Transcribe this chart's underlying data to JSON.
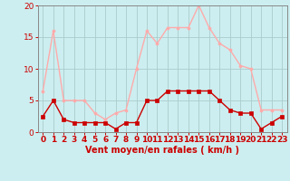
{
  "hours": [
    0,
    1,
    2,
    3,
    4,
    5,
    6,
    7,
    8,
    9,
    10,
    11,
    12,
    13,
    14,
    15,
    16,
    17,
    18,
    19,
    20,
    21,
    22,
    23
  ],
  "vent_moyen": [
    2.5,
    5,
    2,
    1.5,
    1.5,
    1.5,
    1.5,
    0.5,
    1.5,
    1.5,
    5,
    5,
    6.5,
    6.5,
    6.5,
    6.5,
    6.5,
    5,
    3.5,
    3,
    3,
    0.5,
    1.5,
    2.5
  ],
  "rafales": [
    6.5,
    16,
    5,
    5,
    5,
    3,
    2,
    3,
    3.5,
    10,
    16,
    14,
    16.5,
    16.5,
    16.5,
    20,
    16.5,
    14,
    13,
    10.5,
    10,
    3.5,
    3.5,
    3.5
  ],
  "color_moyen": "#cc0000",
  "color_rafales": "#ffaaaa",
  "bg_color": "#cceef0",
  "grid_color": "#aacccc",
  "xlabel": "Vent moyen/en rafales ( km/h )",
  "xlim": [
    -0.5,
    23.5
  ],
  "ylim": [
    0,
    20
  ],
  "yticks": [
    0,
    5,
    10,
    15,
    20
  ],
  "xticks": [
    0,
    1,
    2,
    3,
    4,
    5,
    6,
    7,
    8,
    9,
    10,
    11,
    12,
    13,
    14,
    15,
    16,
    17,
    18,
    19,
    20,
    21,
    22,
    23
  ],
  "axis_fontsize": 7,
  "tick_fontsize": 6.5
}
